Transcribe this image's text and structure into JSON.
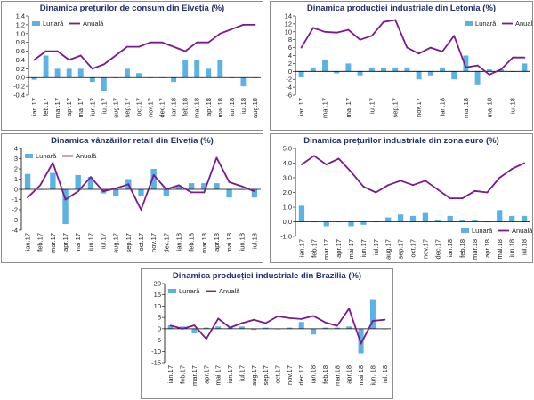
{
  "colors": {
    "bar": "#5bb2e6",
    "line": "#7a1a8c",
    "axis": "#000000",
    "title": "#1f2f6f"
  },
  "chart_data": [
    {
      "type": "bar",
      "title": "Dinamica prețurilor de consum din Elveția (%)",
      "categories": [
        "ian.17",
        "feb.17",
        "mar.17",
        "apr.17",
        "mai.17",
        "iun.17",
        "iul.17",
        "aug.17",
        "sep.17",
        "oct.17",
        "nov.17",
        "dec.17",
        "ian.18",
        "feb.18",
        "mar.18",
        "apr.18",
        "mai.18",
        "iun.18",
        "iul.18",
        "aug.18"
      ],
      "tick_labels": [
        "ian.17",
        "feb.17",
        "mar.17",
        "apr.17",
        "mai 17",
        "iun.17",
        "iul.17",
        "aug.17",
        "sep.17",
        "oct.17",
        "nov.17",
        "dec.17",
        "ian.18",
        "feb.18",
        "mar.18",
        "apr.18",
        "mai.18",
        "iun.18",
        "iul.18",
        "aug.18"
      ],
      "ylim": [
        -0.4,
        1.4
      ],
      "yticks": [
        -0.4,
        -0.2,
        0,
        0.2,
        0.4,
        0.6,
        0.8,
        1.0,
        1.2,
        1.4
      ],
      "ytick_labels": [
        "-0,4",
        "-0,2",
        "0,0",
        "0,2",
        "0,4",
        "0,6",
        "0,8",
        "1,0",
        "1,2",
        "1,4"
      ],
      "legend": {
        "position": "top-left"
      },
      "series": [
        {
          "name": "Lunară",
          "kind": "bar",
          "values": [
            -0.05,
            0.5,
            0.2,
            0.2,
            0.2,
            -0.1,
            -0.3,
            0.0,
            0.2,
            0.1,
            0.0,
            0.0,
            -0.1,
            0.4,
            0.4,
            0.2,
            0.4,
            0.0,
            -0.2,
            0.0
          ]
        },
        {
          "name": "Anuală",
          "kind": "line",
          "values": [
            0.4,
            0.6,
            0.6,
            0.4,
            0.5,
            0.2,
            0.3,
            0.5,
            0.7,
            0.7,
            0.8,
            0.8,
            0.7,
            0.6,
            0.8,
            0.8,
            1.0,
            1.1,
            1.2,
            1.2
          ]
        }
      ]
    },
    {
      "type": "bar",
      "title": "Dinamica producției industriale din Letonia (%)",
      "categories": [
        "ian.17",
        "feb.17",
        "mar.17",
        "apr.17",
        "mai.17",
        "iun.17",
        "iul.17",
        "aug.17",
        "sep.17",
        "oct.17",
        "nov.17",
        "dec.17",
        "ian.18",
        "feb.18",
        "mar.18",
        "apr.18",
        "mai.18",
        "iun.18",
        "iul.18",
        "aug.18"
      ],
      "tick_labels": [
        "ian.17",
        "",
        "mar.17",
        "",
        "mai 17",
        "",
        "iul.17",
        "",
        "sep.17",
        "",
        "nov.17",
        "",
        "ian.18",
        "",
        "mar.18",
        "",
        "mai 18",
        "",
        "iul.18",
        ""
      ],
      "ylim": [
        -6,
        14
      ],
      "yticks": [
        -6,
        -4,
        -2,
        0,
        2,
        4,
        6,
        8,
        10,
        12,
        14
      ],
      "ytick_labels": [
        "-6",
        "-4",
        "-2",
        "0",
        "2",
        "4",
        "6",
        "8",
        "10",
        "12",
        "14"
      ],
      "legend": {
        "position": "top-right"
      },
      "series": [
        {
          "name": "Lunară",
          "kind": "bar",
          "values": [
            -1.5,
            1.0,
            3.0,
            -0.5,
            2.0,
            -1.0,
            1.0,
            1.0,
            1.0,
            1.0,
            -2.0,
            -1.0,
            1.0,
            -2.0,
            4.0,
            -3.5,
            0.5,
            0.5,
            0.0,
            2.0
          ]
        },
        {
          "name": "Anuală",
          "kind": "line",
          "values": [
            6.0,
            11.0,
            10.0,
            9.8,
            10.5,
            8.0,
            9.0,
            12.5,
            13.0,
            6.0,
            4.5,
            6.0,
            5.0,
            9.0,
            1.0,
            1.5,
            -0.8,
            0.5,
            3.5,
            3.5
          ]
        }
      ]
    },
    {
      "type": "bar",
      "title": "Dinamica vânzărilor retail din Elveția (%)",
      "categories": [
        "ian.17",
        "feb.17",
        "mar.17",
        "apr.17",
        "mai.17",
        "iun.17",
        "iul.17",
        "aug.17",
        "sep.17",
        "oct.17",
        "nov.17",
        "dec.17",
        "ian.18",
        "feb.18",
        "mar.18",
        "apr.18",
        "mai.18",
        "iun.18",
        "iul.18"
      ],
      "tick_labels": [
        "ian.17",
        "feb.17",
        "mar.17",
        "apr.17",
        "mai 17",
        "iun.17",
        "iul.17",
        "aug.17",
        "sep.17",
        "oct.17",
        "nov.17",
        "dec.17",
        "ian.18",
        "feb.18",
        "mar.18",
        "apr.18",
        "mai.18",
        "iun.18",
        "iul.18"
      ],
      "ylim": [
        -4,
        4
      ],
      "yticks": [
        -4,
        -3,
        -2,
        -1,
        0,
        1,
        2,
        3,
        4
      ],
      "ytick_labels": [
        "-4",
        "-3",
        "-2",
        "-1",
        "0",
        "1",
        "2",
        "3",
        "4"
      ],
      "legend": {
        "position": "top-left"
      },
      "series": [
        {
          "name": "Lunară",
          "kind": "bar",
          "values": [
            1.5,
            0.0,
            1.6,
            -3.4,
            1.4,
            1.2,
            -0.4,
            -0.7,
            1.0,
            -0.7,
            2.0,
            -0.7,
            0.3,
            0.6,
            0.6,
            0.6,
            -0.8,
            0.0,
            -0.8
          ]
        },
        {
          "name": "Anuală",
          "kind": "line",
          "values": [
            -0.8,
            0.4,
            2.6,
            -1.0,
            -0.2,
            1.2,
            -0.2,
            0.1,
            0.5,
            -2.0,
            1.4,
            0.0,
            0.4,
            -0.3,
            -0.3,
            3.1,
            0.7,
            0.3,
            -0.2
          ]
        }
      ]
    },
    {
      "type": "bar",
      "title": "Dinamica prețurilor industriale din zona euro (%)",
      "categories": [
        "ian.17",
        "feb.17",
        "mar.17",
        "apr.17",
        "mai.17",
        "iun.17",
        "iul.17",
        "aug.17",
        "sep.17",
        "oct.17",
        "nov.17",
        "dec.17",
        "ian.18",
        "feb.18",
        "mar.18",
        "apr.18",
        "mai.18",
        "iun.18",
        "iul.18"
      ],
      "tick_labels": [
        "ian.17",
        "feb.17",
        "mar.17",
        "apr.17",
        "mai 17",
        "iun.17",
        "iul.17",
        "aug.17",
        "sep.17",
        "oct.17",
        "nov.17",
        "dec.17",
        "ian.18",
        "feb.18",
        "mar.18",
        "apr.18",
        "mai.18",
        "iun.18",
        "iul.18"
      ],
      "ylim": [
        -1.0,
        5.0
      ],
      "yticks": [
        -1.0,
        0.0,
        1.0,
        2.0,
        3.0,
        4.0,
        5.0
      ],
      "ytick_labels": [
        "-1,0",
        "0,0",
        "1,0",
        "2,0",
        "3,0",
        "4,0",
        "5,0"
      ],
      "legend": {
        "position": "bottom-right"
      },
      "series": [
        {
          "name": "Lunară",
          "kind": "bar",
          "values": [
            1.1,
            0.0,
            -0.3,
            0.0,
            -0.3,
            -0.2,
            0.0,
            0.3,
            0.5,
            0.4,
            0.6,
            0.1,
            0.4,
            0.1,
            0.1,
            0.0,
            0.8,
            0.4,
            0.4
          ]
        },
        {
          "name": "Anuală",
          "kind": "line",
          "values": [
            3.9,
            4.5,
            3.9,
            4.3,
            3.4,
            2.4,
            2.0,
            2.5,
            2.8,
            2.5,
            2.8,
            2.2,
            1.6,
            1.6,
            2.1,
            2.0,
            3.0,
            3.6,
            4.0
          ]
        }
      ]
    },
    {
      "type": "bar",
      "title": "Dinamica producției industriale din Brazilia (%)",
      "categories": [
        "ian.17",
        "feb.17",
        "mar.17",
        "apr.17",
        "mai.17",
        "iun.17",
        "iul.17",
        "aug.17",
        "sep.17",
        "oct.17",
        "nov.17",
        "dec.17",
        "ian.18",
        "feb.18",
        "mar.18",
        "apr.18",
        "mai.18",
        "iun.18",
        "iul.18"
      ],
      "tick_labels": [
        "ian.17",
        "feb.17",
        "mar.17",
        "apr.17",
        "mai 17",
        "iun.17",
        "iul.17",
        "aug.17",
        "sep.17",
        "oct.17",
        "nov.17",
        "dec.17",
        "ian.18",
        "feb.18",
        "mar.18",
        "apr.18",
        "mai 18",
        "iun. 18",
        "iul. 18"
      ],
      "ylim": [
        -15,
        20
      ],
      "yticks": [
        -15,
        -10,
        -5,
        0,
        5,
        10,
        15,
        20
      ],
      "ytick_labels": [
        "-15",
        "-10",
        "-5",
        "0",
        "5",
        "10",
        "15",
        "20"
      ],
      "legend": {
        "position": "top-left"
      },
      "series": [
        {
          "name": "Lunară",
          "kind": "bar",
          "values": [
            1.5,
            1.0,
            -2.0,
            0.5,
            1.0,
            0.5,
            1.0,
            -0.5,
            0.5,
            0.0,
            0.5,
            3.0,
            -2.5,
            0.5,
            0.5,
            1.0,
            -10.9,
            13.1,
            -0.2
          ]
        },
        {
          "name": "Anuală",
          "kind": "line",
          "values": [
            1.4,
            0.0,
            1.5,
            -4.5,
            4.5,
            0.5,
            2.5,
            4.0,
            2.5,
            5.5,
            4.7,
            4.3,
            5.7,
            2.8,
            1.3,
            8.9,
            -6.6,
            3.5,
            4.0
          ]
        }
      ]
    }
  ]
}
